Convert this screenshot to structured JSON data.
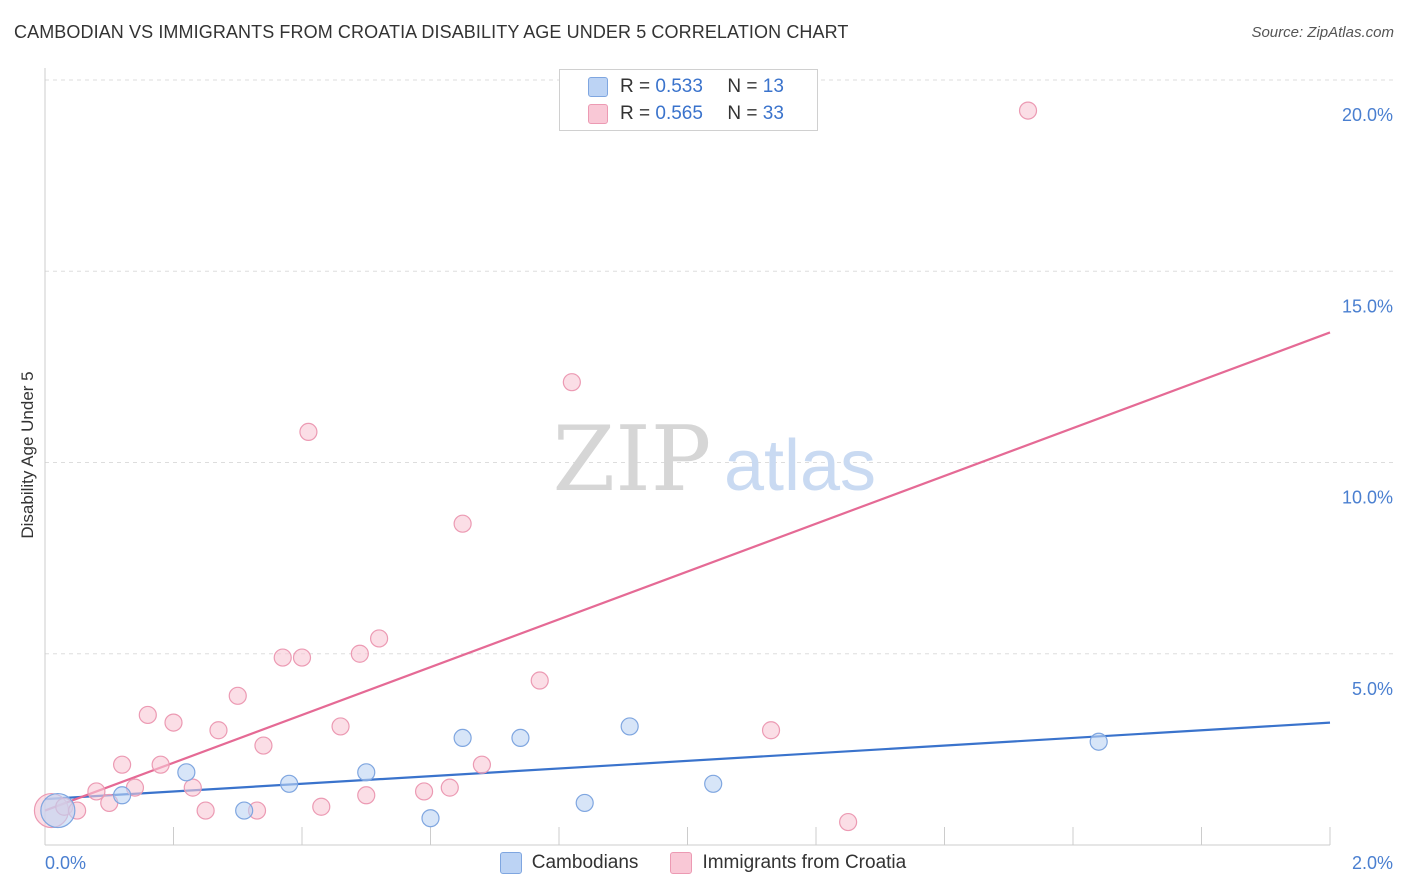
{
  "header": {
    "title": "CAMBODIAN VS IMMIGRANTS FROM CROATIA DISABILITY AGE UNDER 5 CORRELATION CHART",
    "source": "Source: ZipAtlas.com"
  },
  "watermark": {
    "zip": "ZIP",
    "atlas": "atlas"
  },
  "legend_top": {
    "cambodians": {
      "r_label": "R =",
      "r_value": "0.533",
      "n_label": "N =",
      "n_value": "13"
    },
    "croatia": {
      "r_label": "R =",
      "r_value": "0.565",
      "n_label": "N =",
      "n_value": "33"
    }
  },
  "legend_bottom": {
    "cambodians": "Cambodians",
    "croatia": "Immigrants from Croatia"
  },
  "colors": {
    "blue": "#3a73cc",
    "blue_fill": "#bcd3f4",
    "pink": "#e56a95",
    "pink_fill": "#f9c8d6",
    "grid": "#dddddd",
    "tick": "#4a7fd0"
  },
  "chart_data": {
    "type": "scatter",
    "title": "CAMBODIAN VS IMMIGRANTS FROM CROATIA DISABILITY AGE UNDER 5 CORRELATION CHART",
    "xlabel": "",
    "ylabel": "Disability Age Under 5",
    "xlim": [
      0,
      2.0
    ],
    "ylim": [
      0,
      20.0
    ],
    "x_tick_labels": [
      "0.0%",
      "2.0%"
    ],
    "y_ticks": [
      5,
      10,
      15,
      20
    ],
    "y_tick_labels": [
      "5.0%",
      "10.0%",
      "15.0%",
      "20.0%"
    ],
    "grid": true,
    "series": [
      {
        "name": "Cambodians",
        "color": "#3a73cc",
        "points": [
          {
            "x": 0.02,
            "y": 0.9,
            "big": true
          },
          {
            "x": 0.12,
            "y": 1.3
          },
          {
            "x": 0.22,
            "y": 1.9
          },
          {
            "x": 0.31,
            "y": 0.9
          },
          {
            "x": 0.38,
            "y": 1.6
          },
          {
            "x": 0.5,
            "y": 1.9
          },
          {
            "x": 0.6,
            "y": 0.7
          },
          {
            "x": 0.65,
            "y": 2.8
          },
          {
            "x": 0.74,
            "y": 2.8
          },
          {
            "x": 0.84,
            "y": 1.1
          },
          {
            "x": 0.91,
            "y": 3.1
          },
          {
            "x": 1.04,
            "y": 1.6
          },
          {
            "x": 1.64,
            "y": 2.7
          }
        ],
        "trend": {
          "x0": 0.0,
          "y0": 1.2,
          "x1": 2.0,
          "y1": 3.2
        }
      },
      {
        "name": "Immigrants from Croatia",
        "color": "#e56a95",
        "points": [
          {
            "x": 0.01,
            "y": 0.9,
            "big": true
          },
          {
            "x": 0.03,
            "y": 1.0
          },
          {
            "x": 0.05,
            "y": 0.9
          },
          {
            "x": 0.08,
            "y": 1.4
          },
          {
            "x": 0.1,
            "y": 1.1
          },
          {
            "x": 0.12,
            "y": 2.1
          },
          {
            "x": 0.14,
            "y": 1.5
          },
          {
            "x": 0.16,
            "y": 3.4
          },
          {
            "x": 0.18,
            "y": 2.1
          },
          {
            "x": 0.2,
            "y": 3.2
          },
          {
            "x": 0.23,
            "y": 1.5
          },
          {
            "x": 0.25,
            "y": 0.9
          },
          {
            "x": 0.27,
            "y": 3.0
          },
          {
            "x": 0.3,
            "y": 3.9
          },
          {
            "x": 0.33,
            "y": 0.9
          },
          {
            "x": 0.34,
            "y": 2.6
          },
          {
            "x": 0.37,
            "y": 4.9
          },
          {
            "x": 0.4,
            "y": 4.9
          },
          {
            "x": 0.41,
            "y": 10.8
          },
          {
            "x": 0.43,
            "y": 1.0
          },
          {
            "x": 0.46,
            "y": 3.1
          },
          {
            "x": 0.49,
            "y": 5.0
          },
          {
            "x": 0.5,
            "y": 1.3
          },
          {
            "x": 0.52,
            "y": 5.4
          },
          {
            "x": 0.59,
            "y": 1.4
          },
          {
            "x": 0.63,
            "y": 1.5
          },
          {
            "x": 0.65,
            "y": 8.4
          },
          {
            "x": 0.68,
            "y": 2.1
          },
          {
            "x": 0.77,
            "y": 4.3
          },
          {
            "x": 0.82,
            "y": 12.1
          },
          {
            "x": 1.13,
            "y": 3.0
          },
          {
            "x": 1.25,
            "y": 0.6
          },
          {
            "x": 1.53,
            "y": 19.2
          }
        ],
        "trend": {
          "x0": 0.0,
          "y0": 0.9,
          "x1": 2.0,
          "y1": 13.4
        }
      }
    ]
  }
}
